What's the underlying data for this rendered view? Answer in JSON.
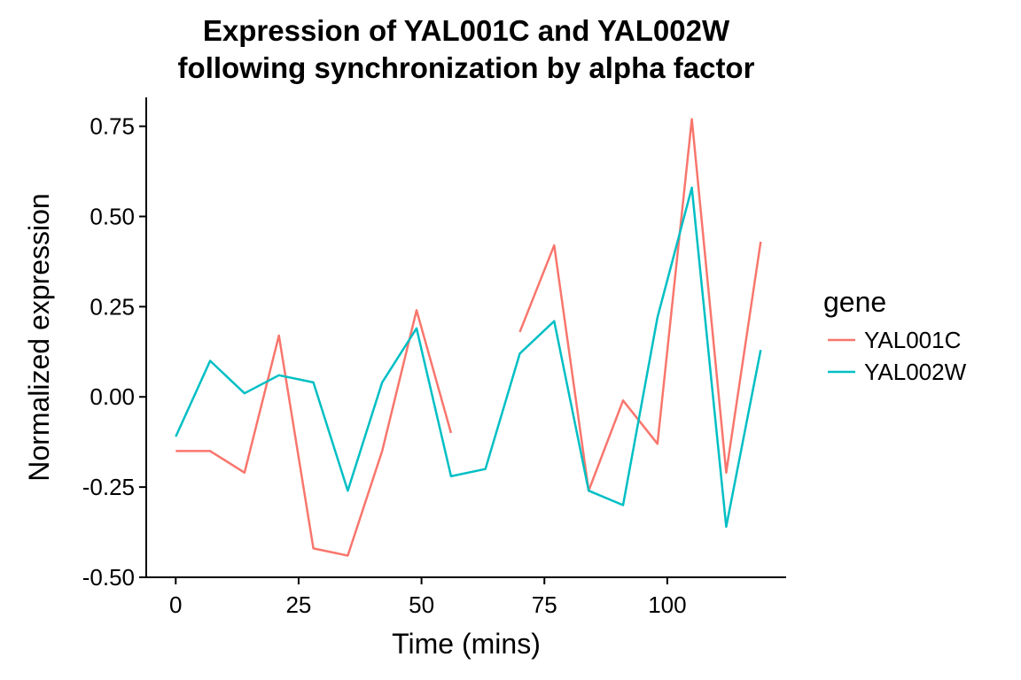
{
  "chart_data": {
    "type": "line",
    "title_line1": "Expression of YAL001C and YAL002W",
    "title_line2": "following synchronization by alpha factor",
    "xlabel": "Time (mins)",
    "ylabel": "Normalized expression",
    "xlim": [
      -6,
      124
    ],
    "ylim": [
      -0.5,
      0.83
    ],
    "x_ticks": [
      0,
      25,
      50,
      75,
      100
    ],
    "x_tick_labels": [
      "0",
      "25",
      "50",
      "75",
      "100"
    ],
    "y_ticks": [
      -0.5,
      -0.25,
      0,
      0.25,
      0.5,
      0.75
    ],
    "y_tick_labels": [
      "-0.50",
      "-0.25",
      "0.00",
      "0.25",
      "0.50",
      "0.75"
    ],
    "grid": false,
    "legend": {
      "title": "gene",
      "position": "right"
    },
    "x": [
      0,
      7,
      14,
      21,
      28,
      35,
      42,
      49,
      56,
      63,
      70,
      77,
      84,
      91,
      98,
      105,
      112,
      119
    ],
    "series": [
      {
        "name": "YAL001C",
        "color": "#F8766D",
        "values": [
          -0.15,
          -0.15,
          -0.21,
          0.17,
          -0.42,
          -0.44,
          -0.15,
          0.24,
          -0.1,
          null,
          0.18,
          0.42,
          -0.26,
          -0.01,
          -0.13,
          0.77,
          -0.21,
          0.43
        ]
      },
      {
        "name": "YAL002W",
        "color": "#00BFC4",
        "values": [
          -0.11,
          0.1,
          0.01,
          0.06,
          0.04,
          -0.26,
          0.04,
          0.19,
          -0.22,
          -0.2,
          0.12,
          0.21,
          -0.26,
          -0.3,
          0.22,
          0.58,
          -0.36,
          0.13
        ]
      }
    ]
  }
}
